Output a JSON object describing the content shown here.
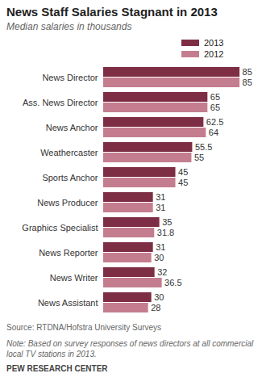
{
  "chart_data": {
    "type": "bar",
    "orientation": "horizontal",
    "title": "News Staff Salaries Stagnant in 2013",
    "subtitle": "Median salaries in thousands",
    "categories": [
      "News Director",
      "Ass. News Director",
      "News Anchor",
      "Weathercaster",
      "Sports Anchor",
      "News Producer",
      "Graphics Specialist",
      "News Reporter",
      "News Writer",
      "News Assistant"
    ],
    "series": [
      {
        "name": "2013",
        "color": "#7d2e45",
        "values": [
          85,
          65,
          62.5,
          55.5,
          45,
          31,
          35,
          31,
          32,
          30
        ]
      },
      {
        "name": "2012",
        "color": "#c47d8f",
        "values": [
          85,
          65,
          64,
          55,
          45,
          31,
          31.8,
          30,
          36.5,
          28
        ]
      }
    ],
    "xlim": [
      0,
      95
    ],
    "data_labels": true,
    "tick_labels": "y",
    "legend": "top",
    "source": "Source: RTDNA/Hofstra University Surveys",
    "note": "Note: Based on survey responses of news directors at all commercial local TV stations in 2013.",
    "credit": "PEW RESEARCH CENTER"
  }
}
